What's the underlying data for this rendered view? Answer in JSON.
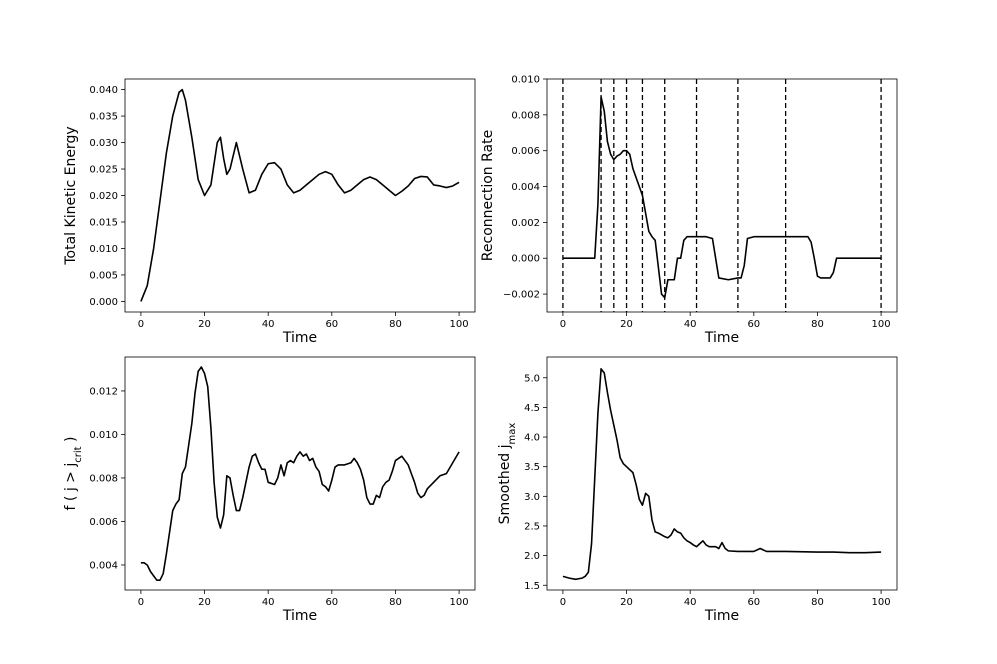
{
  "chart_data": [
    {
      "type": "line",
      "xlabel": "Time",
      "ylabel": "Total Kinetic Energy",
      "color": "#000000",
      "xlim": [
        -5,
        105
      ],
      "ylim": [
        -0.002,
        0.042
      ],
      "xticks": [
        0,
        20,
        40,
        60,
        80,
        100
      ],
      "yticks": [
        {
          "value": 0,
          "label": "0.000"
        },
        {
          "value": 0.005,
          "label": "0.005"
        },
        {
          "value": 0.01,
          "label": "0.010"
        },
        {
          "value": 0.015,
          "label": "0.015"
        },
        {
          "value": 0.02,
          "label": "0.020"
        },
        {
          "value": 0.025,
          "label": "0.025"
        },
        {
          "value": 0.03,
          "label": "0.030"
        },
        {
          "value": 0.035,
          "label": "0.035"
        },
        {
          "value": 0.04,
          "label": "0.040"
        }
      ],
      "x": [
        0,
        2,
        4,
        6,
        8,
        10,
        12,
        13,
        14,
        16,
        18,
        20,
        22,
        24,
        25,
        26,
        27,
        28,
        30,
        32,
        34,
        36,
        38,
        40,
        42,
        44,
        46,
        48,
        50,
        52,
        54,
        56,
        58,
        60,
        62,
        64,
        66,
        68,
        70,
        72,
        74,
        76,
        78,
        80,
        82,
        84,
        86,
        88,
        90,
        92,
        94,
        96,
        98,
        100
      ],
      "values": [
        0,
        0.003,
        0.01,
        0.019,
        0.028,
        0.035,
        0.0395,
        0.04,
        0.038,
        0.031,
        0.023,
        0.02,
        0.022,
        0.03,
        0.031,
        0.027,
        0.024,
        0.025,
        0.03,
        0.025,
        0.0205,
        0.021,
        0.024,
        0.026,
        0.0262,
        0.025,
        0.022,
        0.0205,
        0.021,
        0.022,
        0.023,
        0.024,
        0.0245,
        0.024,
        0.022,
        0.0205,
        0.021,
        0.022,
        0.023,
        0.0235,
        0.023,
        0.022,
        0.021,
        0.02,
        0.0208,
        0.0218,
        0.0232,
        0.0236,
        0.0235,
        0.022,
        0.0218,
        0.0215,
        0.0218,
        0.0225
      ]
    },
    {
      "type": "line",
      "xlabel": "Time",
      "ylabel": "Reconnection Rate",
      "color": "#000000",
      "xlim": [
        -5,
        105
      ],
      "ylim": [
        -0.003,
        0.01
      ],
      "xticks": [
        0,
        20,
        40,
        60,
        80,
        100
      ],
      "yticks": [
        {
          "value": -0.002,
          "label": "−0.002"
        },
        {
          "value": 0,
          "label": "0.000"
        },
        {
          "value": 0.002,
          "label": "0.002"
        },
        {
          "value": 0.004,
          "label": "0.004"
        },
        {
          "value": 0.006,
          "label": "0.006"
        },
        {
          "value": 0.008,
          "label": "0.008"
        },
        {
          "value": 0.01,
          "label": "0.010"
        }
      ],
      "vlines": [
        0,
        12,
        16,
        20,
        25,
        32,
        42,
        55,
        70,
        100
      ],
      "x": [
        0,
        10,
        11,
        12,
        13,
        14,
        15,
        16,
        17,
        18,
        19,
        20,
        21,
        22,
        24,
        25,
        26,
        27,
        28,
        29,
        30,
        31,
        32,
        33,
        35,
        36,
        37,
        38,
        39,
        41,
        45,
        47,
        48,
        49,
        52,
        55,
        56,
        57,
        58,
        60,
        70,
        77,
        78,
        79,
        80,
        81,
        84,
        85,
        86,
        90,
        100
      ],
      "values": [
        0,
        0,
        0.003,
        0.009,
        0.0082,
        0.0065,
        0.0058,
        0.0055,
        0.0057,
        0.0058,
        0.006,
        0.006,
        0.0058,
        0.005,
        0.004,
        0.0035,
        0.0025,
        0.0015,
        0.0012,
        0.001,
        -0.0005,
        -0.002,
        -0.0022,
        -0.0012,
        -0.0012,
        0,
        0,
        0.001,
        0.0012,
        0.0012,
        0.0012,
        0.0011,
        0,
        -0.0011,
        -0.0012,
        -0.0011,
        -0.0011,
        -0.0004,
        0.0011,
        0.0012,
        0.0012,
        0.0012,
        0.0009,
        0,
        -0.001,
        -0.0011,
        -0.0011,
        -0.0008,
        0,
        0,
        0
      ]
    },
    {
      "type": "line",
      "xlabel": "Time",
      "ylabel": [
        "f ( j > j",
        "crit",
        " )"
      ],
      "color": "#000000",
      "xlim": [
        -5,
        105
      ],
      "ylim": [
        0.00285,
        0.01356
      ],
      "xticks": [
        0,
        20,
        40,
        60,
        80,
        100
      ],
      "yticks": [
        {
          "value": 0.004,
          "label": "0.004"
        },
        {
          "value": 0.006,
          "label": "0.006"
        },
        {
          "value": 0.008,
          "label": "0.008"
        },
        {
          "value": 0.01,
          "label": "0.010"
        },
        {
          "value": 0.012,
          "label": "0.012"
        }
      ],
      "x": [
        0,
        1,
        2,
        3,
        4,
        5,
        6,
        7,
        8,
        9,
        10,
        11,
        12,
        13,
        14,
        15,
        16,
        17,
        18,
        19,
        20,
        21,
        22,
        23,
        24,
        25,
        26,
        27,
        28,
        29,
        30,
        31,
        32,
        33,
        34,
        35,
        36,
        37,
        38,
        39,
        40,
        42,
        43,
        44,
        45,
        46,
        47,
        48,
        49,
        50,
        51,
        52,
        53,
        54,
        55,
        56,
        57,
        58,
        59,
        60,
        61,
        62,
        64,
        66,
        67,
        68,
        69,
        70,
        71,
        72,
        73,
        74,
        75,
        76,
        77,
        78,
        79,
        80,
        82,
        84,
        85,
        86,
        87,
        88,
        89,
        90,
        92,
        94,
        96,
        98,
        100
      ],
      "values": [
        0.0041,
        0.0041,
        0.004,
        0.0037,
        0.0035,
        0.0033,
        0.0033,
        0.0036,
        0.0045,
        0.0055,
        0.0065,
        0.0068,
        0.007,
        0.0082,
        0.0085,
        0.0095,
        0.0105,
        0.0119,
        0.0129,
        0.0131,
        0.0128,
        0.0122,
        0.0103,
        0.0078,
        0.0062,
        0.0057,
        0.0063,
        0.0081,
        0.008,
        0.0072,
        0.0065,
        0.0065,
        0.0071,
        0.0078,
        0.0085,
        0.009,
        0.0091,
        0.0087,
        0.0084,
        0.0084,
        0.0078,
        0.0077,
        0.008,
        0.0086,
        0.0081,
        0.0087,
        0.0088,
        0.0087,
        0.009,
        0.0092,
        0.009,
        0.0091,
        0.0088,
        0.0089,
        0.0085,
        0.0083,
        0.0077,
        0.0076,
        0.0074,
        0.0079,
        0.0085,
        0.0086,
        0.0086,
        0.0087,
        0.0089,
        0.0087,
        0.0084,
        0.0079,
        0.0071,
        0.0068,
        0.0068,
        0.0072,
        0.0071,
        0.0076,
        0.0078,
        0.0079,
        0.0083,
        0.0088,
        0.009,
        0.0086,
        0.0082,
        0.0078,
        0.0073,
        0.0071,
        0.0072,
        0.0075,
        0.0078,
        0.0081,
        0.0082,
        0.0087,
        0.0092
      ]
    },
    {
      "type": "line",
      "xlabel": "Time",
      "ylabel": [
        "Smoothed j",
        "max"
      ],
      "color": "#000000",
      "xlim": [
        -5,
        105
      ],
      "ylim": [
        1.42,
        5.35
      ],
      "xticks": [
        0,
        20,
        40,
        60,
        80,
        100
      ],
      "yticks": [
        1.5,
        {
          "value": 2,
          "label": "2.0"
        },
        2.5,
        {
          "value": 3,
          "label": "3.0"
        },
        3.5,
        {
          "value": 4,
          "label": "4.0"
        },
        4.5,
        {
          "value": 5,
          "label": "5.0"
        }
      ],
      "x": [
        0,
        2,
        4,
        6,
        7,
        8,
        9,
        10,
        11,
        12,
        13,
        14,
        15,
        16,
        17,
        18,
        19,
        20,
        21,
        22,
        23,
        24,
        25,
        26,
        27,
        28,
        29,
        30,
        32,
        33,
        34,
        35,
        36,
        37,
        38,
        39,
        40,
        41,
        42,
        43,
        44,
        45,
        46,
        48,
        49,
        50,
        51,
        52,
        55,
        60,
        62,
        64,
        70,
        80,
        85,
        90,
        95,
        100
      ],
      "values": [
        1.65,
        1.62,
        1.6,
        1.62,
        1.65,
        1.72,
        2.2,
        3.3,
        4.4,
        5.15,
        5.08,
        4.75,
        4.45,
        4.2,
        3.95,
        3.65,
        3.55,
        3.5,
        3.45,
        3.4,
        3.2,
        2.95,
        2.85,
        3.05,
        3,
        2.6,
        2.4,
        2.38,
        2.32,
        2.3,
        2.35,
        2.45,
        2.4,
        2.38,
        2.3,
        2.25,
        2.22,
        2.18,
        2.15,
        2.2,
        2.25,
        2.18,
        2.15,
        2.15,
        2.12,
        2.22,
        2.12,
        2.08,
        2.07,
        2.07,
        2.12,
        2.07,
        2.07,
        2.06,
        2.06,
        2.05,
        2.05,
        2.06
      ]
    }
  ]
}
